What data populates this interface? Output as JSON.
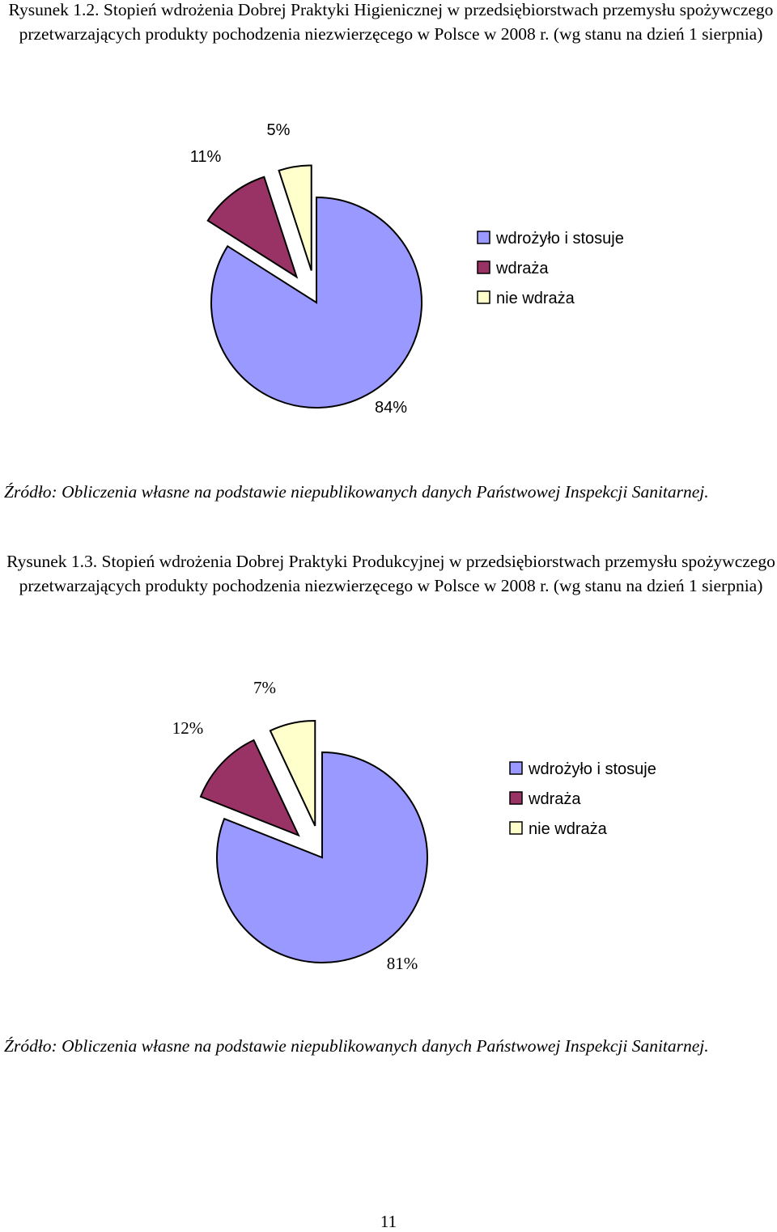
{
  "figures": [
    {
      "caption": "Rysunek 1.2. Stopień wdrożenia Dobrej Praktyki Higienicznej w przedsiębiorstwach przemysłu spożywczego przetwarzających produkty pochodzenia niezwierzęcego w Polsce  w 2008 r. (wg stanu na dzień 1 sierpnia)",
      "source": "Źródło: Obliczenia własne na podstawie niepublikowanych danych Państwowej Inspekcji Sanitarnej."
    },
    {
      "caption": "Rysunek 1.3. Stopień wdrożenia Dobrej Praktyki Produkcyjnej w przedsiębiorstwach przemysłu spożywczego przetwarzających produkty pochodzenia niezwierzęcego w Polsce  w 2008 r. (wg stanu na dzień 1 sierpnia)",
      "source": "Źródło: Obliczenia własne na podstawie niepublikowanych danych Państwowej Inspekcji Sanitarnej."
    }
  ],
  "chart_data": [
    {
      "type": "pie",
      "exploded": true,
      "categories": [
        "wdrożyło i stosuje",
        "wdraża",
        "nie wdraża"
      ],
      "values": [
        84,
        11,
        5
      ],
      "labels": [
        "84%",
        "11%",
        "5%"
      ],
      "colors": [
        "#9999ff",
        "#993366",
        "#ffffcc"
      ],
      "legend_position": "right"
    },
    {
      "type": "pie",
      "exploded": true,
      "categories": [
        "wdrożyło i stosuje",
        "wdraża",
        "nie wdraża"
      ],
      "values": [
        81,
        12,
        7
      ],
      "labels": [
        "81%",
        "12%",
        "7%"
      ],
      "colors": [
        "#9999ff",
        "#993366",
        "#ffffcc"
      ],
      "legend_position": "right"
    }
  ],
  "page_number": "11"
}
